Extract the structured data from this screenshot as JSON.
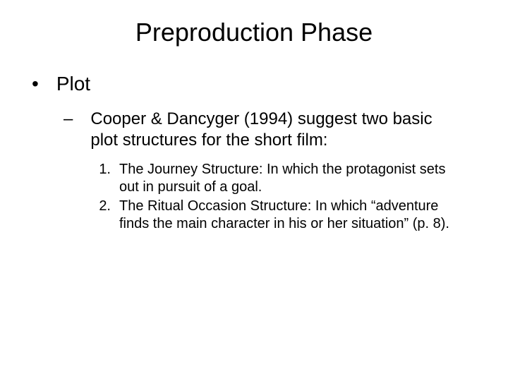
{
  "slide": {
    "title": "Preproduction Phase",
    "background_color": "#ffffff",
    "text_color": "#000000",
    "title_fontsize": 36,
    "level1_fontsize": 28,
    "level2_fontsize": 24,
    "level3_fontsize": 20,
    "font_family": "Arial"
  },
  "content": {
    "level1_bullet": "•",
    "level1_text": "Plot",
    "level2_bullet": "–",
    "level2_text": "Cooper & Dancyger (1994) suggest two basic plot structures for the short film:",
    "item1_number": "1.",
    "item1_text": "The Journey Structure:  In which the protagonist sets out in pursuit of a goal.",
    "item2_number": "2.",
    "item2_text": "The Ritual Occasion Structure:  In which “adventure finds the main character in his or her situation” (p. 8)."
  }
}
